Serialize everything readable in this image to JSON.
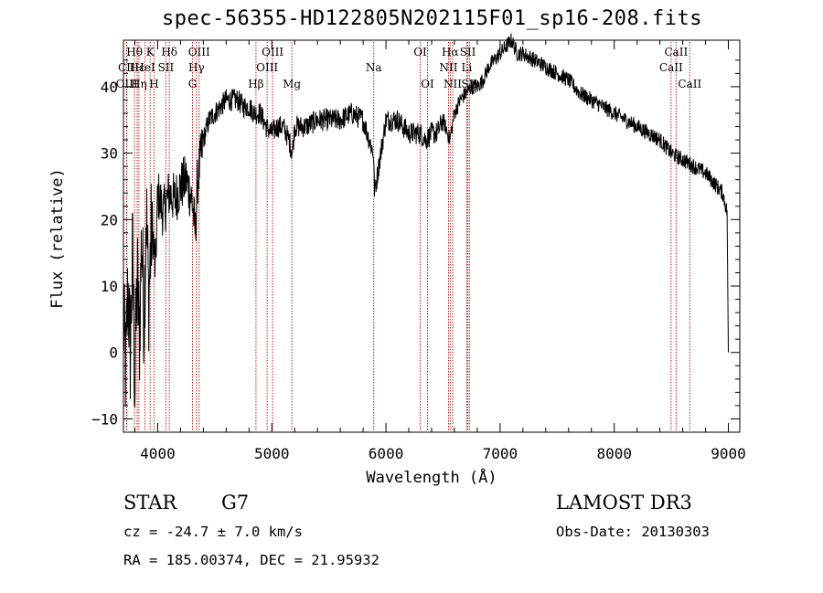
{
  "title": "spec-56355-HD122805N202115F01_sp16-208.fits",
  "info": {
    "object_class": "STAR",
    "subclass": "G7",
    "cz": "cz = -24.7 ± 7.0 km/s",
    "coords": "RA = 185.00374, DEC =  21.95932",
    "survey": "LAMOST DR3",
    "obs_date": "Obs-Date: 20130303"
  },
  "chart_data": {
    "type": "line",
    "title": "spec-56355-HD122805N202115F01_sp16-208.fits",
    "xlabel": "Wavelength (Å)",
    "ylabel": "Flux (relative)",
    "xlim": [
      3700,
      9100
    ],
    "ylim": [
      -12,
      47
    ],
    "xticks": [
      4000,
      5000,
      6000,
      7000,
      8000,
      9000
    ],
    "yticks": [
      -10,
      0,
      10,
      20,
      30,
      40
    ],
    "grid": false,
    "line_color": "#000000",
    "marker_color": "#b22222",
    "series": [
      {
        "x": [
          3700,
          3720,
          3740,
          3760,
          3780,
          3800,
          3820,
          3840,
          3860,
          3880,
          3900,
          3920,
          3950,
          3980,
          4000,
          4050,
          4100,
          4150,
          4200,
          4250,
          4300,
          4330,
          4350,
          4400,
          4450,
          4500,
          4550,
          4600,
          4650,
          4700,
          4750,
          4800,
          4850,
          4900,
          4950,
          5000,
          5050,
          5100,
          5150,
          5180,
          5200,
          5300,
          5400,
          5500,
          5600,
          5700,
          5800,
          5890,
          5900,
          6000,
          6100,
          6200,
          6300,
          6350,
          6400,
          6450,
          6500,
          6560,
          6600,
          6650,
          6700,
          6750,
          6800,
          6850,
          6900,
          6950,
          7000,
          7050,
          7100,
          7150,
          7200,
          7300,
          7400,
          7500,
          7600,
          7700,
          7800,
          7900,
          8000,
          8100,
          8200,
          8300,
          8400,
          8500,
          8600,
          8700,
          8800,
          8900,
          8950,
          8990,
          9000
        ],
        "y": [
          5,
          -3,
          10,
          0,
          15,
          -6,
          12,
          2,
          18,
          5,
          22,
          8,
          20,
          12,
          24,
          21,
          24,
          23,
          25,
          26,
          23,
          18,
          26,
          32,
          35,
          36,
          37,
          38,
          38,
          38,
          37,
          37,
          36,
          36,
          34,
          33,
          34,
          34,
          32,
          30,
          34,
          34,
          35,
          35,
          35,
          36,
          35,
          30,
          24,
          35,
          35,
          33,
          33,
          32,
          33,
          33,
          35,
          32,
          36,
          38,
          39,
          40,
          40,
          41,
          43,
          44,
          45,
          46,
          47,
          45,
          45,
          44,
          43,
          42,
          41,
          39,
          38,
          37,
          36,
          35,
          34,
          33,
          32,
          30,
          29,
          28,
          27,
          25,
          24,
          21,
          0
        ]
      }
    ],
    "annotations": [
      {
        "label": "Hθ",
        "x": 3797,
        "row": 1
      },
      {
        "label": "CII",
        "x": 3727,
        "row": 2
      },
      {
        "label": "OIII",
        "x": 3729,
        "row": 3
      },
      {
        "label": "Hε",
        "x": 3820,
        "row": 2
      },
      {
        "label": "Hη",
        "x": 3835,
        "row": 3
      },
      {
        "label": "K",
        "x": 3934,
        "row": 1
      },
      {
        "label": "HeI",
        "x": 3889,
        "row": 2
      },
      {
        "label": "H",
        "x": 3968,
        "row": 3
      },
      {
        "label": "Hδ",
        "x": 4102,
        "row": 1
      },
      {
        "label": "SII",
        "x": 4072,
        "row": 2
      },
      {
        "label": "OIII",
        "x": 4363,
        "row": 1
      },
      {
        "label": "Hγ",
        "x": 4340,
        "row": 2
      },
      {
        "label": "G",
        "x": 4305,
        "row": 3
      },
      {
        "label": "Hβ",
        "x": 4861,
        "row": 3
      },
      {
        "label": "OIII",
        "x": 5007,
        "row": 1
      },
      {
        "label": "OIII",
        "x": 4959,
        "row": 2
      },
      {
        "label": "Mg",
        "x": 5175,
        "row": 3
      },
      {
        "label": "Na",
        "x": 5893,
        "row": 2
      },
      {
        "label": "OI",
        "x": 6300,
        "row": 1
      },
      {
        "label": "OI",
        "x": 6364,
        "row": 3
      },
      {
        "label": "Hα",
        "x": 6563,
        "row": 1
      },
      {
        "label": "NII",
        "x": 6548,
        "row": 2
      },
      {
        "label": "NII",
        "x": 6584,
        "row": 3
      },
      {
        "label": "SII",
        "x": 6717,
        "row": 1
      },
      {
        "label": "Li",
        "x": 6708,
        "row": 2
      },
      {
        "label": "SII",
        "x": 6731,
        "row": 3
      },
      {
        "label": "CaII",
        "x": 8542,
        "row": 1
      },
      {
        "label": "CaII",
        "x": 8498,
        "row": 2
      },
      {
        "label": "CaII",
        "x": 8662,
        "row": 3
      }
    ]
  }
}
